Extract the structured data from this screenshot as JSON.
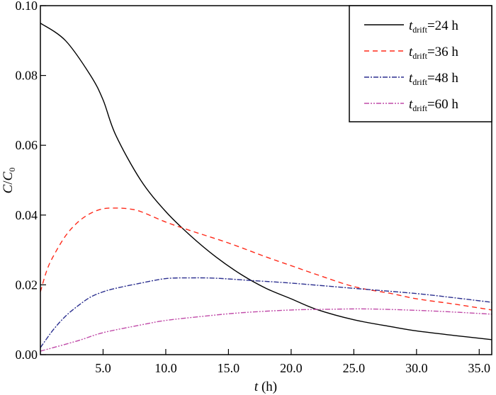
{
  "chart_data": {
    "type": "line",
    "title": "",
    "xlabel_var": "t",
    "xlabel_unit": " (h)",
    "ylabel_var1": "C",
    "ylabel_sep": "/",
    "ylabel_var2": "C",
    "ylabel_sub": "0",
    "xlim": [
      0,
      36
    ],
    "ylim": [
      0,
      0.1
    ],
    "xticks": [
      5,
      10,
      15,
      20,
      25,
      30,
      35
    ],
    "xtick_labels": [
      "5.0",
      "10.0",
      "15.0",
      "20.0",
      "25.0",
      "30.0",
      "35.0"
    ],
    "yticks": [
      0,
      0.02,
      0.04,
      0.06,
      0.08,
      0.1
    ],
    "ytick_labels": [
      "0.00",
      "0.02",
      "0.04",
      "0.06",
      "0.08",
      "0.10"
    ],
    "grid": false,
    "legend_position": "top-right",
    "series": [
      {
        "name": "t_drift=24 h",
        "var": "t",
        "sub": "drift",
        "rest": "=24 h",
        "color": "#000000",
        "dash": "",
        "x": [
          0,
          2,
          4,
          5,
          6,
          8,
          10,
          12,
          14,
          16,
          18,
          20,
          22,
          25,
          28,
          30,
          33,
          36
        ],
        "y": [
          0.095,
          0.09,
          0.08,
          0.073,
          0.063,
          0.05,
          0.041,
          0.034,
          0.028,
          0.023,
          0.019,
          0.016,
          0.013,
          0.01,
          0.008,
          0.0068,
          0.0055,
          0.0043
        ]
      },
      {
        "name": "t_drift=36 h",
        "var": "t",
        "sub": "drift",
        "rest": "=36 h",
        "color": "#ff2a1a",
        "dash": "7,5",
        "x": [
          0,
          0.5,
          1,
          2,
          3,
          4,
          5,
          6,
          7,
          8,
          10,
          12,
          15,
          18,
          20,
          22,
          25,
          28,
          30,
          33,
          36
        ],
        "y": [
          0.018,
          0.024,
          0.028,
          0.034,
          0.038,
          0.0405,
          0.0418,
          0.042,
          0.0418,
          0.041,
          0.038,
          0.0355,
          0.032,
          0.028,
          0.0255,
          0.023,
          0.0195,
          0.0175,
          0.016,
          0.0145,
          0.0128
        ]
      },
      {
        "name": "t_drift=48 h",
        "var": "t",
        "sub": "drift",
        "rest": "=48 h",
        "color": "#2b2f8f",
        "dash": "7,2,2,2",
        "x": [
          0,
          1,
          2,
          3,
          4,
          5,
          6,
          8,
          10,
          12,
          14,
          17,
          20,
          25,
          30,
          33,
          36
        ],
        "y": [
          0.002,
          0.007,
          0.011,
          0.014,
          0.0165,
          0.018,
          0.019,
          0.0205,
          0.0218,
          0.022,
          0.0219,
          0.0212,
          0.0205,
          0.019,
          0.0175,
          0.0163,
          0.015
        ]
      },
      {
        "name": "t_drift=60 h",
        "var": "t",
        "sub": "drift",
        "rest": "=60 h",
        "color": "#c04aa8",
        "dash": "7,2,2,2,2,2",
        "x": [
          0,
          3,
          5,
          8,
          10,
          13,
          16,
          20,
          23,
          26,
          30,
          33,
          36
        ],
        "y": [
          0.001,
          0.004,
          0.0063,
          0.0085,
          0.0098,
          0.011,
          0.012,
          0.0128,
          0.013,
          0.0131,
          0.0127,
          0.0122,
          0.0116
        ]
      }
    ]
  }
}
